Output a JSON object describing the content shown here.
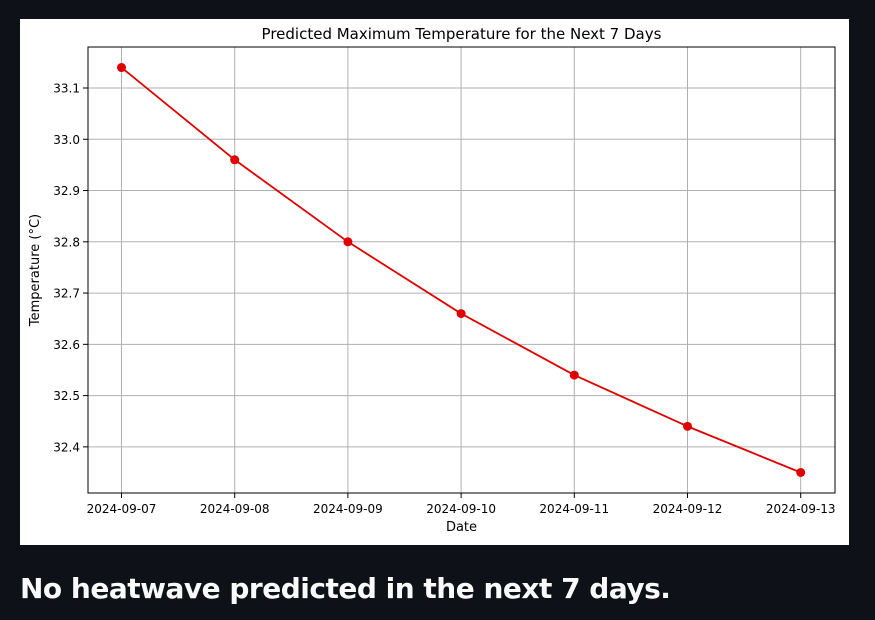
{
  "chart_data": {
    "type": "line",
    "title": "Predicted Maximum Temperature for the Next 7 Days",
    "xlabel": "Date",
    "ylabel": "Temperature (°C)",
    "x": [
      "2024-09-07",
      "2024-09-08",
      "2024-09-09",
      "2024-09-10",
      "2024-09-11",
      "2024-09-12",
      "2024-09-13"
    ],
    "series": [
      {
        "values": [
          33.14,
          32.96,
          32.8,
          32.66,
          32.54,
          32.44,
          32.35
        ],
        "color": "#e00000",
        "marker": "circle"
      }
    ],
    "yticks": [
      "32.4",
      "32.5",
      "32.6",
      "32.7",
      "32.8",
      "32.9",
      "33.0",
      "33.1"
    ],
    "ylim": [
      32.31,
      33.18
    ],
    "grid": true
  },
  "message": "No heatwave predicted in the next 7 days."
}
